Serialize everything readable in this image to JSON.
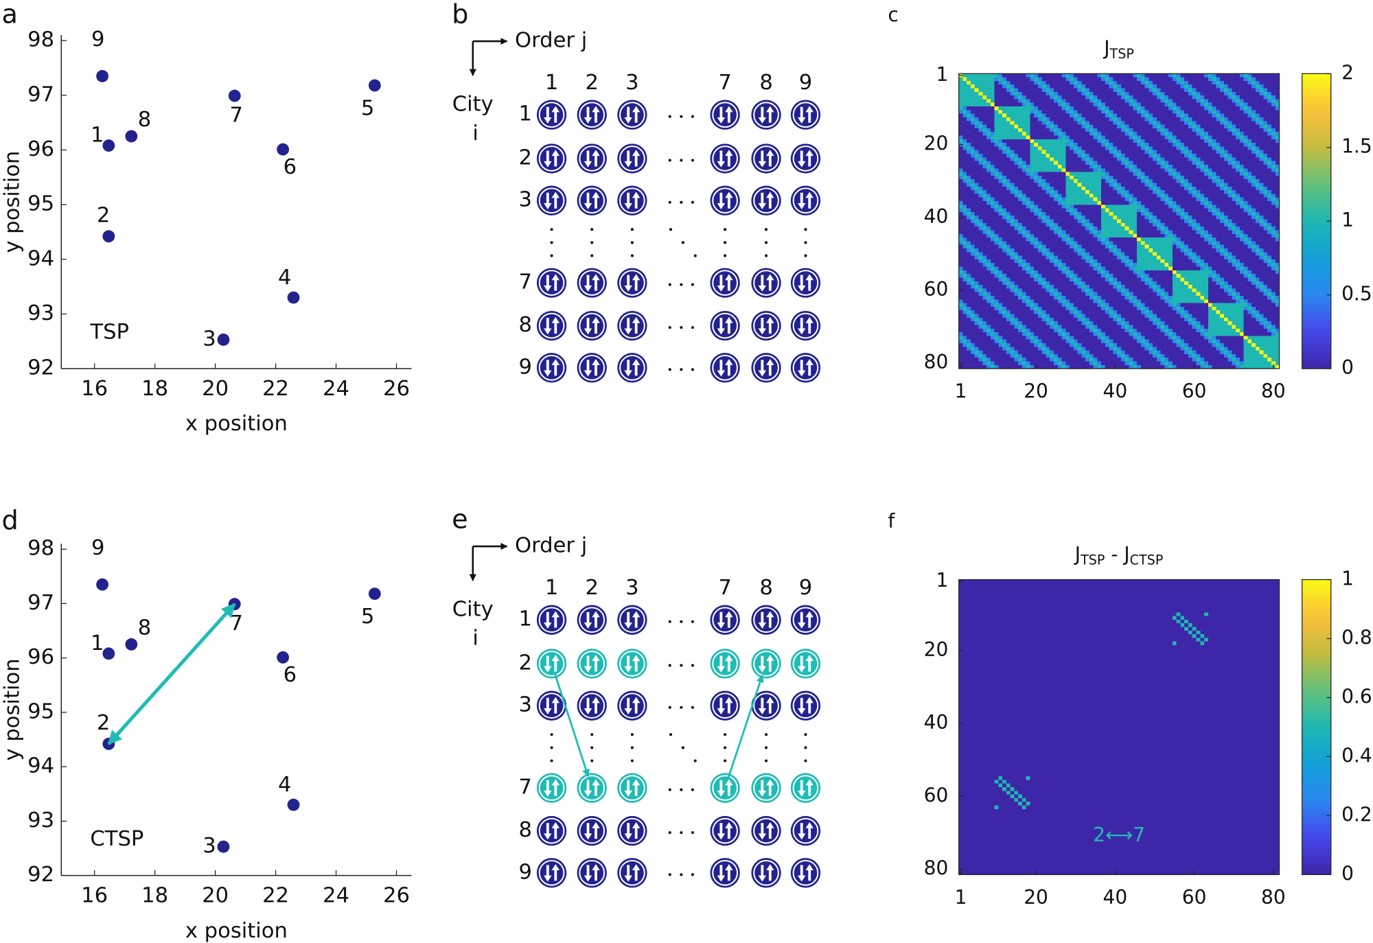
{
  "chart_data": [
    {
      "panel": "a",
      "type": "scatter",
      "x_label": "x position",
      "y_label": "y position",
      "annotation": "TSP",
      "xlim": [
        14.9,
        26.5
      ],
      "ylim": [
        92,
        98.1
      ],
      "xticks": [
        16,
        18,
        20,
        22,
        24,
        26
      ],
      "yticks": [
        92,
        93,
        94,
        95,
        96,
        97,
        98
      ],
      "series": [
        {
          "color": "#23238e",
          "x": [
            16.47,
            16.47,
            20.27,
            22.59,
            25.28,
            22.24,
            20.64,
            17.22,
            16.26
          ],
          "y": [
            96.08,
            94.42,
            92.53,
            93.3,
            97.18,
            96.01,
            96.99,
            96.25,
            97.35
          ],
          "labels": [
            "1",
            "2",
            "3",
            "4",
            "5",
            "6",
            "7",
            "8",
            "9"
          ]
        }
      ]
    },
    {
      "panel": "c",
      "type": "heatmap",
      "title": [
        {
          "text": "J"
        },
        {
          "text": "TSP",
          "sub": true
        }
      ],
      "xlim": [
        0.5,
        81.5
      ],
      "ylim": [
        81.5,
        0.5
      ],
      "xticks": [
        1,
        20,
        40,
        60,
        80
      ],
      "yticks": [
        1,
        20,
        40,
        60,
        80
      ],
      "colormap": "parula",
      "clim": [
        0,
        2
      ],
      "cticks": [
        0,
        0.5,
        1,
        1.5,
        2
      ],
      "background": 0,
      "bands": [
        {
          "offsets": [
            9,
            18,
            27,
            36,
            45,
            54,
            63,
            72,
            -9,
            -18,
            -27,
            -36,
            -45,
            -54,
            -63,
            -72
          ],
          "value": 1
        },
        {
          "offsets": [
            8,
            10,
            17,
            19,
            26,
            28,
            35,
            37,
            44,
            46,
            53,
            55,
            62,
            64,
            71,
            73,
            -8,
            -10,
            -17,
            -19,
            -26,
            -28,
            -35,
            -37,
            -44,
            -46,
            -53,
            -55,
            -62,
            -64,
            -71,
            -73
          ],
          "value": 0.5
        }
      ],
      "blocks": {
        "size": 9,
        "value": 1
      },
      "diagonal": 2
    },
    {
      "panel": "d",
      "type": "scatter",
      "x_label": "x position",
      "y_label": "y position",
      "annotation": "CTSP",
      "xlim": [
        14.9,
        26.5
      ],
      "ylim": [
        92,
        98.1
      ],
      "xticks": [
        16,
        18,
        20,
        22,
        24,
        26
      ],
      "yticks": [
        92,
        93,
        94,
        95,
        96,
        97,
        98
      ],
      "series": [
        {
          "color": "#23238e",
          "x": [
            16.47,
            16.47,
            20.27,
            22.59,
            25.28,
            22.24,
            20.64,
            17.22,
            16.26
          ],
          "y": [
            96.08,
            94.42,
            92.53,
            93.3,
            97.18,
            96.01,
            96.99,
            96.25,
            97.35
          ],
          "labels": [
            "1",
            "2",
            "3",
            "4",
            "5",
            "6",
            "7",
            "8",
            "9"
          ]
        }
      ],
      "arrow_between": [
        "2",
        "7"
      ],
      "arrow_color": "#1fbcb4"
    },
    {
      "panel": "f",
      "type": "heatmap",
      "title": [
        {
          "text": "J"
        },
        {
          "text": "TSP",
          "sub": true
        },
        {
          "text": " - J"
        },
        {
          "text": "CTSP",
          "sub": true
        }
      ],
      "xlim": [
        0.5,
        81.5
      ],
      "ylim": [
        81.5,
        0.5
      ],
      "xticks": [
        1,
        20,
        40,
        60,
        80
      ],
      "yticks": [
        1,
        20,
        40,
        60,
        80
      ],
      "colormap": "parula",
      "clim": [
        0,
        1
      ],
      "cticks": [
        0,
        0.2,
        0.4,
        0.6,
        0.8,
        1
      ],
      "background": 0,
      "cells": [
        [
          10,
          56,
          0.5
        ],
        [
          11,
          57,
          0.5
        ],
        [
          12,
          58,
          0.5
        ],
        [
          13,
          59,
          0.5
        ],
        [
          14,
          60,
          0.5
        ],
        [
          15,
          61,
          0.5
        ],
        [
          16,
          62,
          0.5
        ],
        [
          17,
          63,
          0.5
        ],
        [
          11,
          55,
          0.5
        ],
        [
          12,
          56,
          0.5
        ],
        [
          13,
          57,
          0.5
        ],
        [
          14,
          58,
          0.5
        ],
        [
          15,
          59,
          0.5
        ],
        [
          16,
          60,
          0.5
        ],
        [
          17,
          61,
          0.5
        ],
        [
          18,
          62,
          0.5
        ],
        [
          10,
          63,
          0.5
        ],
        [
          18,
          55,
          0.5
        ],
        [
          56,
          10,
          0.5
        ],
        [
          57,
          11,
          0.5
        ],
        [
          58,
          12,
          0.5
        ],
        [
          59,
          13,
          0.5
        ],
        [
          60,
          14,
          0.5
        ],
        [
          61,
          15,
          0.5
        ],
        [
          62,
          16,
          0.5
        ],
        [
          63,
          17,
          0.5
        ],
        [
          55,
          11,
          0.5
        ],
        [
          56,
          12,
          0.5
        ],
        [
          57,
          13,
          0.5
        ],
        [
          58,
          14,
          0.5
        ],
        [
          59,
          15,
          0.5
        ],
        [
          60,
          16,
          0.5
        ],
        [
          61,
          17,
          0.5
        ],
        [
          62,
          18,
          0.5
        ],
        [
          63,
          10,
          0.5
        ],
        [
          55,
          18,
          0.5
        ]
      ],
      "annotation": "2⟷7",
      "annotation_color": "#1fbcb4"
    }
  ],
  "diagrams": [
    {
      "panel": "b",
      "col_axis": "Order j",
      "row_axis": [
        "City",
        "i"
      ],
      "columns": [
        "1",
        "2",
        "3",
        "7",
        "8",
        "9"
      ],
      "rows": [
        {
          "label": "1",
          "color": "#23238e"
        },
        {
          "label": "2",
          "color": "#23238e"
        },
        {
          "label": "3",
          "color": "#23238e"
        },
        {
          "label": "7",
          "color": "#23238e"
        },
        {
          "label": "8",
          "color": "#23238e"
        },
        {
          "label": "9",
          "color": "#23238e"
        }
      ]
    },
    {
      "panel": "e",
      "col_axis": "Order j",
      "row_axis": [
        "City",
        "i"
      ],
      "columns": [
        "1",
        "2",
        "3",
        "7",
        "8",
        "9"
      ],
      "rows": [
        {
          "label": "1",
          "color": "#23238e"
        },
        {
          "label": "2",
          "color": "#1fbcb4"
        },
        {
          "label": "3",
          "color": "#23238e"
        },
        {
          "label": "7",
          "color": "#1fbcb4"
        },
        {
          "label": "8",
          "color": "#23238e"
        },
        {
          "label": "9",
          "color": "#23238e"
        }
      ],
      "arrows": [
        {
          "from": [
            "2",
            "1"
          ],
          "to": [
            "7",
            "2"
          ]
        },
        {
          "from": [
            "7",
            "7"
          ],
          "to": [
            "2",
            "8"
          ]
        }
      ],
      "arrow_color": "#1fbcb4"
    }
  ]
}
